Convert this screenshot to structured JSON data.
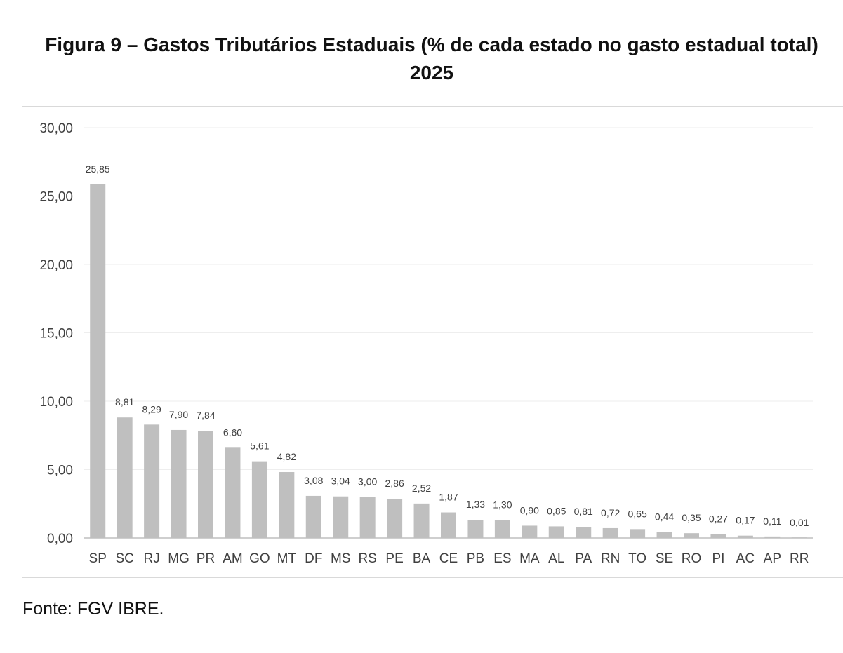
{
  "title": "Figura 9 – Gastos Tributários Estaduais (% de cada estado no gasto estadual total) 2025",
  "source": "Fonte: FGV IBRE.",
  "colors": {
    "bar": "#bfbfbf",
    "grid": "#eeeeee",
    "axis": "#bfbfbf",
    "text": "#404040"
  },
  "chart_data": {
    "type": "bar",
    "title": "Figura 9 – Gastos Tributários Estaduais (% de cada estado no gasto estadual total) 2025",
    "xlabel": "",
    "ylabel": "",
    "categories": [
      "SP",
      "SC",
      "RJ",
      "MG",
      "PR",
      "AM",
      "GO",
      "MT",
      "DF",
      "MS",
      "RS",
      "PE",
      "BA",
      "CE",
      "PB",
      "ES",
      "MA",
      "AL",
      "PA",
      "RN",
      "TO",
      "SE",
      "RO",
      "PI",
      "AC",
      "AP",
      "RR"
    ],
    "values": [
      25.85,
      8.81,
      8.29,
      7.9,
      7.84,
      6.6,
      5.61,
      4.82,
      3.08,
      3.04,
      3.0,
      2.86,
      2.52,
      1.87,
      1.33,
      1.3,
      0.9,
      0.85,
      0.81,
      0.72,
      0.65,
      0.44,
      0.35,
      0.27,
      0.17,
      0.11,
      0.01
    ],
    "value_labels": [
      "25,85",
      "8,81",
      "8,29",
      "7,90",
      "7,84",
      "6,60",
      "5,61",
      "4,82",
      "3,08",
      "3,04",
      "3,00",
      "2,86",
      "2,52",
      "1,87",
      "1,33",
      "1,30",
      "0,90",
      "0,85",
      "0,81",
      "0,72",
      "0,65",
      "0,44",
      "0,35",
      "0,27",
      "0,17",
      "0,11",
      "0,01"
    ],
    "ylim": [
      0,
      30
    ],
    "yticks": [
      0,
      5,
      10,
      15,
      20,
      25,
      30
    ],
    "ytick_labels": [
      "0,00",
      "5,00",
      "10,00",
      "15,00",
      "20,00",
      "25,00",
      "30,00"
    ],
    "grid": true,
    "legend": "none"
  }
}
